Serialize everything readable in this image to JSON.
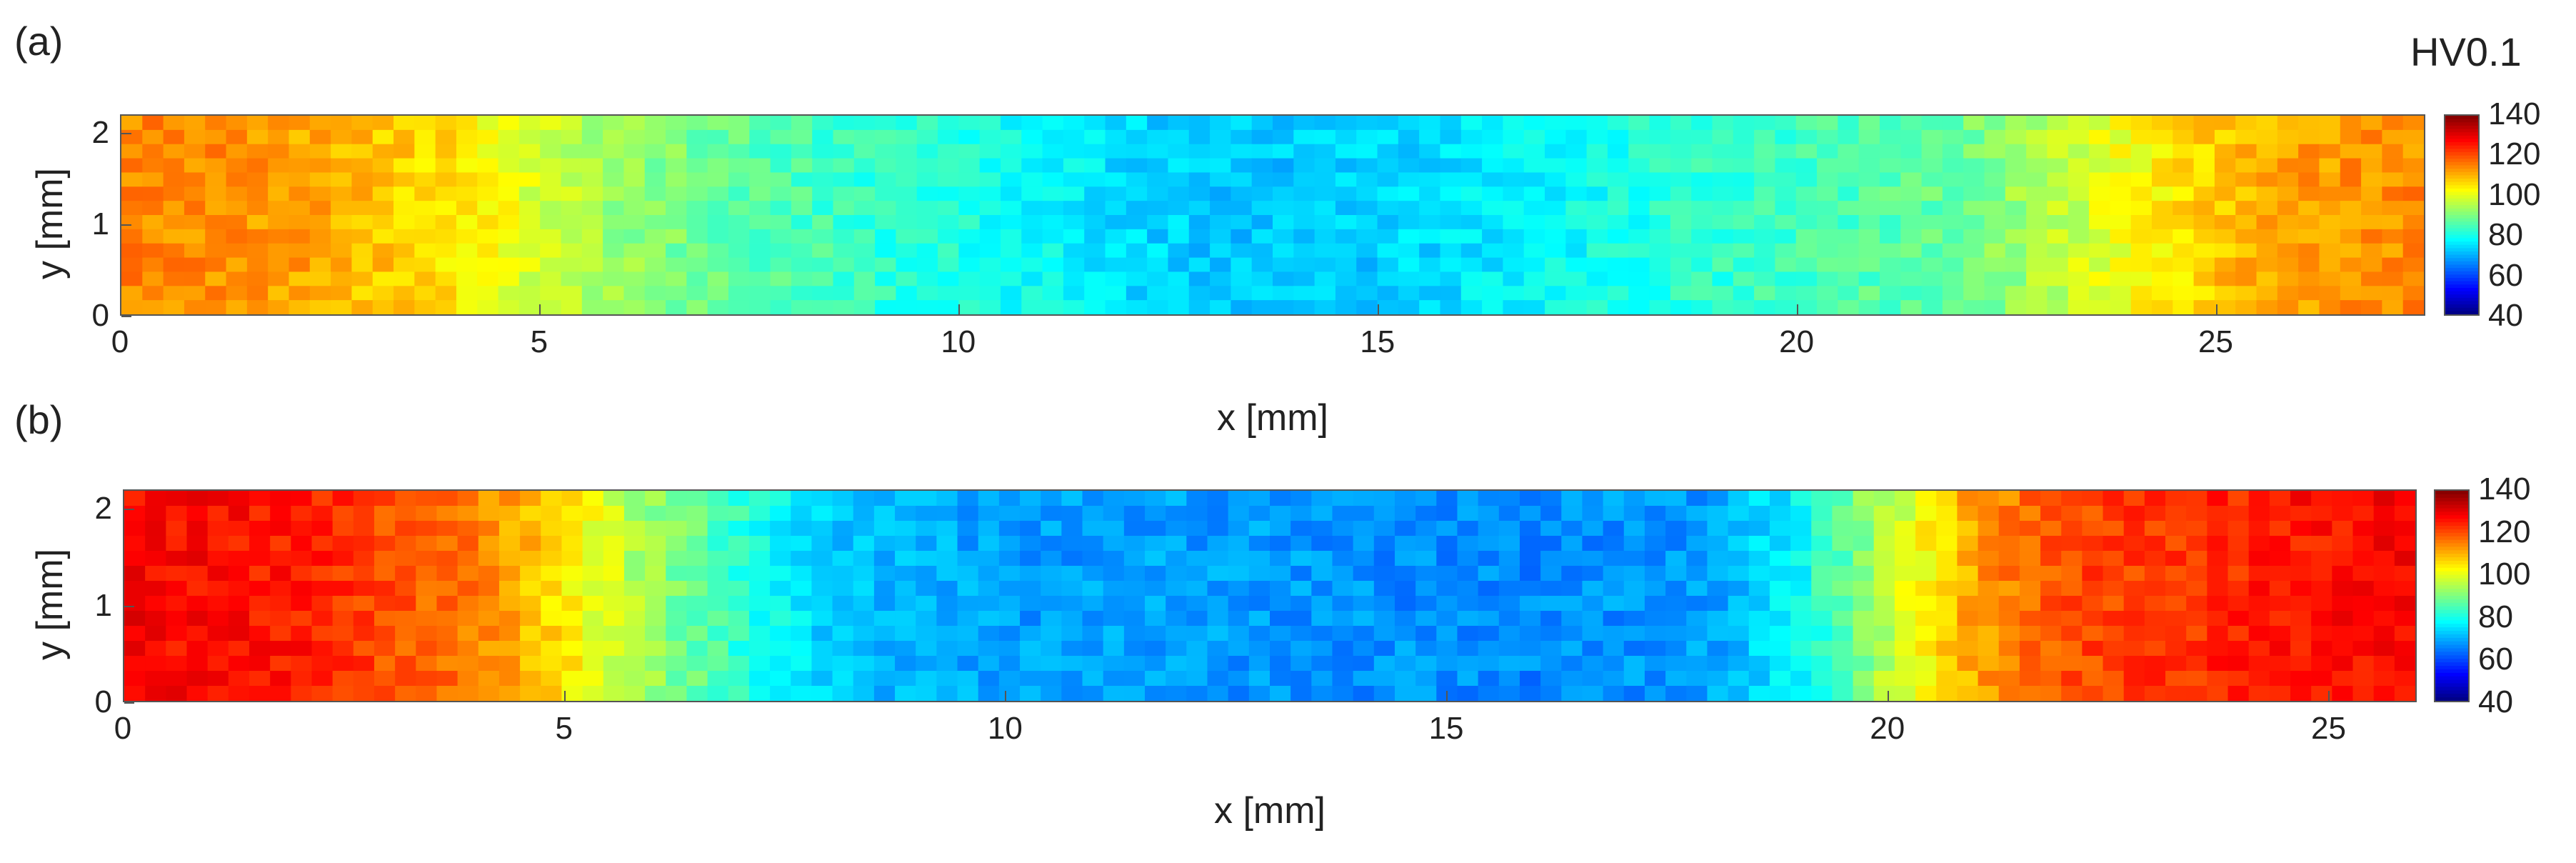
{
  "unit_label": "HV0.1",
  "chart_data": [
    {
      "type": "heatmap",
      "panel_label": "(a)",
      "xlabel": "x [mm]",
      "ylabel": "y [mm]",
      "xlim": [
        0,
        27.5
      ],
      "ylim": [
        0,
        2.2
      ],
      "xticks": [
        "0",
        "5",
        "10",
        "15",
        "20",
        "25"
      ],
      "yticks": [
        "0",
        "1",
        "2"
      ],
      "colorbar": {
        "min": 40,
        "max": 140,
        "ticks": [
          "140",
          "120",
          "100",
          "80",
          "60",
          "40"
        ],
        "colormap": "jet"
      },
      "description_profile": {
        "x_mm": [
          0,
          2,
          4,
          5,
          6,
          7,
          8,
          9,
          10,
          11,
          12,
          13,
          14,
          15,
          16,
          17,
          18,
          19,
          20,
          21,
          22,
          23,
          24,
          25,
          26,
          27.5
        ],
        "hardness_HV": [
          115,
          112,
          105,
          98,
          92,
          88,
          85,
          82,
          80,
          78,
          74,
          72,
          72,
          73,
          75,
          77,
          80,
          82,
          84,
          86,
          88,
          95,
          102,
          108,
          112,
          114
        ]
      }
    },
    {
      "type": "heatmap",
      "panel_label": "(b)",
      "xlabel": "x [mm]",
      "ylabel": "y [mm]",
      "xlim": [
        0,
        26
      ],
      "ylim": [
        0,
        2.2
      ],
      "xticks": [
        "0",
        "5",
        "10",
        "15",
        "20",
        "25"
      ],
      "yticks": [
        "0",
        "1",
        "2"
      ],
      "colorbar": {
        "min": 40,
        "max": 140,
        "ticks": [
          "140",
          "120",
          "100",
          "80",
          "60",
          "40"
        ],
        "colormap": "jet"
      },
      "description_profile": {
        "x_mm": [
          0,
          2,
          4,
          5,
          6,
          7,
          8,
          10,
          12,
          14,
          16,
          18,
          19,
          20,
          21,
          22,
          24,
          26
        ],
        "hardness_HV": [
          128,
          125,
          115,
          105,
          92,
          82,
          72,
          68,
          68,
          67,
          66,
          68,
          78,
          95,
          112,
          120,
          124,
          128
        ]
      }
    }
  ],
  "colors": {
    "frame": "#555555",
    "background": "#ffffff"
  }
}
